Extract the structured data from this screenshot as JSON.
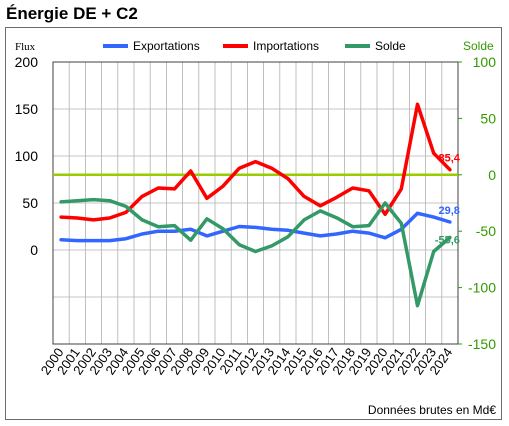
{
  "title": "Énergie DE + C2",
  "footer": "Données brutes en Md€",
  "chart_data": {
    "type": "line",
    "x": [
      "2000",
      "2001",
      "2002",
      "2003",
      "2004",
      "2005",
      "2006",
      "2007",
      "2008",
      "2009",
      "2010",
      "2011",
      "2012",
      "2013",
      "2014",
      "2015",
      "2016",
      "2017",
      "2018",
      "2019",
      "2020",
      "2021",
      "2022",
      "2023",
      "2024"
    ],
    "left_axis": {
      "label": "Flux",
      "ylim": [
        -100,
        200
      ],
      "ticks": [
        0,
        50,
        100,
        150,
        200
      ]
    },
    "right_axis": {
      "label": "Solde",
      "ylim": [
        -150,
        100
      ],
      "ticks": [
        -150,
        -100,
        -50,
        0,
        50,
        100
      ],
      "color": "#339900"
    },
    "grid": true,
    "legend_position": "top",
    "series": [
      {
        "name": "Exportations",
        "axis": "left",
        "color": "#3366ff",
        "values": [
          11,
          10,
          10,
          10,
          12,
          17,
          20,
          20,
          22,
          15,
          20,
          25,
          24,
          22,
          21,
          18,
          15,
          17,
          20,
          18,
          13,
          22,
          39,
          35,
          29.8
        ],
        "end_label": "29,8"
      },
      {
        "name": "Importations",
        "axis": "left",
        "color": "#ff0000",
        "values": [
          35,
          34,
          32,
          34,
          40,
          57,
          66,
          65,
          84,
          55,
          68,
          87,
          94,
          87,
          76,
          57,
          47,
          56,
          66,
          63,
          38,
          65,
          155,
          103,
          85.4
        ],
        "end_label": "85,4"
      },
      {
        "name": "Solde",
        "axis": "right",
        "color": "#339966",
        "values": [
          -24,
          -23,
          -22,
          -23,
          -28,
          -40,
          -46,
          -45,
          -58,
          -39,
          -48,
          -62,
          -68,
          -63,
          -55,
          -40,
          -32,
          -38,
          -46,
          -45,
          -25,
          -43,
          -116,
          -68,
          -55.6
        ],
        "end_label": "-55,6"
      }
    ],
    "reference_line": {
      "axis": "right",
      "value": 0,
      "color": "#99cc00"
    }
  }
}
